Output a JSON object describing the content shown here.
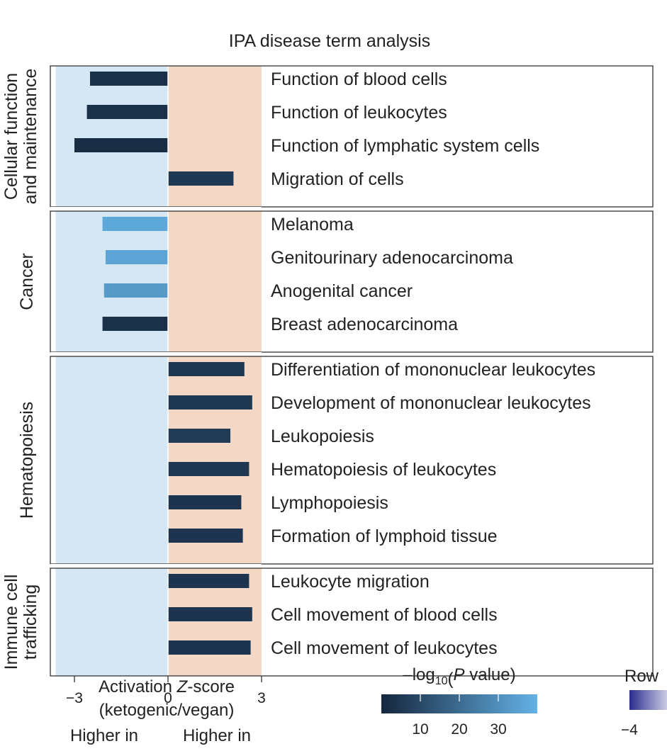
{
  "chart_data": {
    "type": "bar",
    "orientation": "horizontal",
    "title": "IPA disease term analysis",
    "xlabel_line1": "Activation Z-score",
    "xlabel_line2": "(ketogenic/vegan)",
    "xticks": [
      -3,
      0,
      3
    ],
    "xlim": [
      -3.6,
      15.4
    ],
    "shaded_regions": [
      {
        "range": [
          -3.6,
          0
        ],
        "color": "#d5e6f4"
      },
      {
        "range": [
          0,
          3
        ],
        "color": "#f4d8c6"
      }
    ],
    "direction_labels": [
      {
        "text": "Higher in",
        "color": "#2e9fc9"
      },
      {
        "text": "Higher in",
        "color": "#c8743a"
      }
    ],
    "groups": [
      {
        "name_lines": [
          "Cellular function",
          "and maintenance"
        ],
        "items": [
          {
            "label": "Function of blood cells",
            "value": -2.5,
            "neglog10p": 3
          },
          {
            "label": "Function of leukocytes",
            "value": -2.6,
            "neglog10p": 3
          },
          {
            "label": "Function of lymphatic system cells",
            "value": -3.0,
            "neglog10p": 2
          },
          {
            "label": "Migration of cells",
            "value": 2.1,
            "neglog10p": 5
          }
        ]
      },
      {
        "name_lines": [
          "Cancer"
        ],
        "items": [
          {
            "label": "Melanoma",
            "value": -2.1,
            "neglog10p": 37
          },
          {
            "label": "Genitourinary adenocarcinoma",
            "value": -2.0,
            "neglog10p": 36
          },
          {
            "label": "Anogenital cancer",
            "value": -2.05,
            "neglog10p": 33
          },
          {
            "label": "Breast adenocarcinoma",
            "value": -2.1,
            "neglog10p": 3
          }
        ]
      },
      {
        "name_lines": [
          "Hematopoiesis"
        ],
        "items": [
          {
            "label": "Differentiation of mononuclear leukocytes",
            "value": 2.45,
            "neglog10p": 5
          },
          {
            "label": "Development of mononuclear leukocytes",
            "value": 2.7,
            "neglog10p": 5
          },
          {
            "label": "Leukopoiesis",
            "value": 2.0,
            "neglog10p": 6
          },
          {
            "label": "Hematopoiesis of leukocytes",
            "value": 2.6,
            "neglog10p": 5
          },
          {
            "label": "Lymphopoiesis",
            "value": 2.35,
            "neglog10p": 4
          },
          {
            "label": "Formation of lymphoid tissue",
            "value": 2.4,
            "neglog10p": 4
          }
        ]
      },
      {
        "name_lines": [
          "Immune cell",
          "trafficking"
        ],
        "items": [
          {
            "label": "Leukocyte migration",
            "value": 2.6,
            "neglog10p": 4
          },
          {
            "label": "Cell movement of blood cells",
            "value": 2.7,
            "neglog10p": 4
          },
          {
            "label": "Cell movement of leukocytes",
            "value": 2.65,
            "neglog10p": 4
          }
        ]
      }
    ],
    "colorbar": {
      "title_prefix": "–log",
      "title_sub": "10",
      "title_suffix_open": "(",
      "title_italic": "P",
      "title_suffix_close": " value)",
      "ticks": [
        10,
        20,
        30
      ],
      "range": [
        0,
        40
      ],
      "color_low": "#15263d",
      "color_high": "#64b2e6"
    },
    "row_legend": {
      "title": "Row",
      "tick": "−4",
      "color_low": "#2a2d8e",
      "color_high": "#ffffff"
    }
  }
}
